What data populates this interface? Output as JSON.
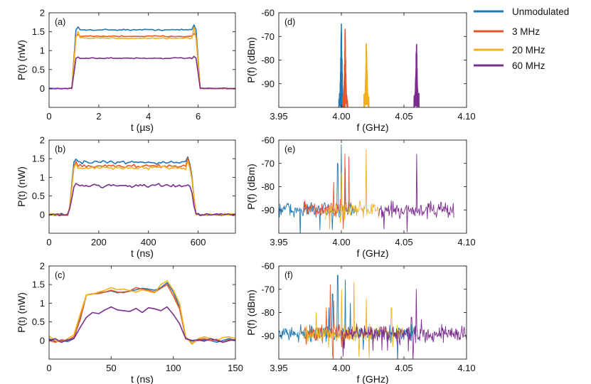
{
  "figure": {
    "panels": [
      "(a)",
      "(b)",
      "(c)",
      "(d)",
      "(e)",
      "(f)"
    ]
  },
  "legend": {
    "entries": [
      {
        "name": "Unmodulated",
        "color": "#1f77b4"
      },
      {
        "name": "3 MHz",
        "color": "#e4572e"
      },
      {
        "name": "20 MHz",
        "color": "#f2b01e"
      },
      {
        "name": "60 MHz",
        "color": "#7b2d8e"
      }
    ]
  },
  "chart_data": [
    {
      "id": "a",
      "type": "line",
      "panel_label": "(a)",
      "xlabel": "t (µs)",
      "ylabel": "P(t) (nW)",
      "xlim": [
        0,
        7.5
      ],
      "ylim": [
        -0.5,
        2
      ],
      "xticks": [
        0,
        2,
        4,
        6
      ],
      "yticks": [
        0,
        0.5,
        1,
        1.5,
        2
      ],
      "xtick_labels": [
        "0",
        "2",
        "4",
        "6"
      ],
      "ytick_labels": [
        "0",
        "0.5",
        "1",
        "1.5",
        "2"
      ],
      "pulse": {
        "start": 0.95,
        "end": 5.95,
        "ramp": 0.1,
        "noise": 0.025
      },
      "series": [
        {
          "name": "Unmodulated",
          "level": 1.55,
          "peak": 1.68
        },
        {
          "name": "3 MHz",
          "level": 1.38,
          "peak": 1.45
        },
        {
          "name": "20 MHz",
          "level": 1.33,
          "peak": 1.62
        },
        {
          "name": "60 MHz",
          "level": 0.8,
          "peak": 0.85
        }
      ]
    },
    {
      "id": "b",
      "type": "line",
      "panel_label": "(b)",
      "xlabel": "t (ns)",
      "ylabel": "P(t) (nW)",
      "xlim": [
        0,
        750
      ],
      "ylim": [
        -0.5,
        2
      ],
      "xticks": [
        0,
        200,
        400,
        600
      ],
      "yticks": [
        0,
        0.5,
        1,
        1.5,
        2
      ],
      "xtick_labels": [
        "0",
        "200",
        "400",
        "600"
      ],
      "ytick_labels": [
        "0",
        "0.5",
        "1",
        "1.5",
        "2"
      ],
      "pulse": {
        "start": 80,
        "end": 570,
        "ramp": 20,
        "noise": 0.07
      },
      "series": [
        {
          "name": "Unmodulated",
          "level": 1.4,
          "peak": 1.55
        },
        {
          "name": "3 MHz",
          "level": 1.3,
          "peak": 1.52
        },
        {
          "name": "20 MHz",
          "level": 1.25,
          "peak": 1.45
        },
        {
          "name": "60 MHz",
          "level": 0.78,
          "peak": 0.8
        }
      ]
    },
    {
      "id": "c",
      "type": "line",
      "panel_label": "(c)",
      "xlabel": "t (ns)",
      "ylabel": "P(t) (nW)",
      "xlim": [
        0,
        150
      ],
      "ylim": [
        -0.5,
        2
      ],
      "xticks": [
        0,
        50,
        100,
        150
      ],
      "yticks": [
        0,
        0.5,
        1,
        1.5,
        2
      ],
      "xtick_labels": [
        "0",
        "50",
        "100",
        "150"
      ],
      "ytick_labels": [
        "0",
        "0.5",
        "1",
        "1.5",
        "2"
      ],
      "series": [
        {
          "name": "Unmodulated",
          "x": [
            0,
            5,
            10,
            15,
            20,
            25,
            30,
            35,
            40,
            45,
            50,
            55,
            60,
            65,
            70,
            75,
            80,
            85,
            90,
            95,
            100,
            105,
            110,
            115,
            120,
            125,
            130,
            135,
            140,
            145,
            150
          ],
          "y": [
            0.05,
            -0.02,
            0.0,
            -0.03,
            0.05,
            0.6,
            1.22,
            1.25,
            1.28,
            1.3,
            1.33,
            1.28,
            1.3,
            1.32,
            1.36,
            1.4,
            1.38,
            1.35,
            1.42,
            1.55,
            1.3,
            0.9,
            0.05,
            -0.02,
            0.0,
            0.02,
            0.0,
            -0.05,
            0.0,
            0.05,
            0.0
          ]
        },
        {
          "name": "3 MHz",
          "x": [
            0,
            5,
            10,
            15,
            20,
            25,
            30,
            35,
            40,
            45,
            50,
            55,
            60,
            65,
            70,
            75,
            80,
            85,
            90,
            95,
            100,
            105,
            110,
            115,
            120,
            125,
            130,
            135,
            140,
            145,
            150
          ],
          "y": [
            0.0,
            -0.05,
            0.02,
            0.0,
            0.1,
            0.55,
            1.22,
            1.25,
            1.26,
            1.3,
            1.35,
            1.3,
            1.28,
            1.33,
            1.42,
            1.38,
            1.35,
            1.3,
            1.4,
            1.5,
            1.2,
            0.85,
            0.1,
            -0.08,
            0.02,
            0.05,
            0.0,
            0.03,
            -0.05,
            0.02,
            0.0
          ]
        },
        {
          "name": "20 MHz",
          "x": [
            0,
            5,
            10,
            15,
            20,
            25,
            30,
            35,
            40,
            45,
            50,
            55,
            60,
            65,
            70,
            75,
            80,
            85,
            90,
            95,
            100,
            105,
            110,
            115,
            120,
            125,
            130,
            135,
            140,
            145,
            150
          ],
          "y": [
            0.12,
            0.0,
            -0.05,
            0.05,
            0.15,
            0.7,
            1.22,
            1.24,
            1.3,
            1.35,
            1.42,
            1.36,
            1.38,
            1.34,
            1.3,
            1.36,
            1.32,
            1.28,
            1.5,
            1.6,
            1.35,
            1.0,
            0.1,
            -0.1,
            0.05,
            0.1,
            0.05,
            0.0,
            0.08,
            0.1,
            0.05
          ]
        },
        {
          "name": "60 MHz",
          "x": [
            0,
            5,
            10,
            15,
            20,
            25,
            30,
            35,
            40,
            45,
            50,
            55,
            60,
            65,
            70,
            75,
            80,
            85,
            90,
            95,
            100,
            105,
            110,
            115,
            120,
            125,
            130,
            135,
            140,
            145,
            150
          ],
          "y": [
            0.0,
            0.05,
            -0.05,
            0.02,
            0.05,
            0.35,
            0.62,
            0.75,
            0.72,
            0.82,
            0.9,
            0.82,
            0.8,
            0.78,
            0.86,
            0.75,
            0.88,
            0.85,
            0.8,
            0.9,
            0.7,
            0.45,
            0.05,
            0.0,
            0.02,
            -0.02,
            0.05,
            0.0,
            -0.05,
            0.0,
            0.02
          ]
        }
      ]
    },
    {
      "id": "d",
      "type": "line",
      "panel_label": "(d)",
      "xlabel": "f (GHz)",
      "ylabel": "P(f) (dBm)",
      "xlim": [
        3.95,
        4.1
      ],
      "ylim": [
        -100,
        -60
      ],
      "xticks": [
        3.95,
        4.0,
        4.05,
        4.1
      ],
      "yticks": [
        -90,
        -80,
        -70,
        -60
      ],
      "xtick_labels": [
        "3.95",
        "4.00",
        "4.05",
        "4.10"
      ],
      "ytick_labels": [
        "-90",
        "-80",
        "-70",
        "-60"
      ],
      "series": [
        {
          "name": "Unmodulated",
          "center": 4.0,
          "peak": -60,
          "base": -100,
          "width": 0.004
        },
        {
          "name": "3 MHz",
          "center": 4.003,
          "peak": -65,
          "base": -100,
          "width": 0.004
        },
        {
          "name": "20 MHz",
          "center": 4.02,
          "peak": -65,
          "base": -100,
          "width": 0.004
        },
        {
          "name": "60 MHz",
          "center": 4.06,
          "peak": -67,
          "base": -100,
          "width": 0.004
        }
      ]
    },
    {
      "id": "e",
      "type": "line",
      "panel_label": "(e)",
      "xlabel": "f (GHz)",
      "ylabel": "P(f) (dBm)",
      "xlim": [
        3.95,
        4.1
      ],
      "ylim": [
        -100,
        -60
      ],
      "xticks": [
        3.95,
        4.0,
        4.05,
        4.1
      ],
      "yticks": [
        -90,
        -80,
        -70,
        -60
      ],
      "xtick_labels": [
        "3.95",
        "4.00",
        "4.05",
        "4.10"
      ],
      "ytick_labels": [
        "-90",
        "-80",
        "-70",
        "-60"
      ],
      "noise_floor": -90,
      "noise_spread": 5,
      "series": [
        {
          "name": "Unmodulated",
          "range": [
            3.95,
            4.012
          ],
          "peaks": [
            [
              4.0,
              -62
            ],
            [
              3.997,
              -70
            ],
            [
              4.003,
              -72
            ]
          ]
        },
        {
          "name": "3 MHz",
          "range": [
            3.97,
            4.007
          ],
          "peaks": [
            [
              4.003,
              -66
            ],
            [
              4.006,
              -67
            ],
            [
              3.994,
              -78
            ]
          ]
        },
        {
          "name": "20 MHz",
          "range": [
            3.987,
            4.03
          ],
          "peaks": [
            [
              4.02,
              -64
            ],
            [
              4.0,
              -74
            ],
            [
              3.98,
              -82
            ],
            [
              4.04,
              -84
            ]
          ]
        },
        {
          "name": "60 MHz",
          "range": [
            4.03,
            4.09
          ],
          "peaks": [
            [
              4.06,
              -66
            ],
            [
              4.04,
              -86
            ],
            [
              4.08,
              -87
            ]
          ]
        }
      ]
    },
    {
      "id": "f",
      "type": "line",
      "panel_label": "(f)",
      "xlabel": "f (GHz)",
      "ylabel": "P(f) (dBm)",
      "xlim": [
        3.95,
        4.1
      ],
      "ylim": [
        -100,
        -60
      ],
      "xticks": [
        3.95,
        4.0,
        4.05,
        4.1
      ],
      "yticks": [
        -90,
        -80,
        -70,
        -60
      ],
      "xtick_labels": [
        "3.95",
        "4.00",
        "4.05",
        "4.10"
      ],
      "ytick_labels": [
        "-90",
        "-80",
        "-70",
        "-60"
      ],
      "noise_floor": -89,
      "noise_spread": 5,
      "series": [
        {
          "name": "Unmodulated",
          "range": [
            3.95,
            4.06
          ],
          "peaks": [
            [
              3.997,
              -64
            ],
            [
              4.003,
              -66
            ],
            [
              3.993,
              -72
            ],
            [
              4.007,
              -76
            ],
            [
              3.99,
              -78
            ]
          ]
        },
        {
          "name": "3 MHz",
          "range": [
            3.97,
            4.01
          ],
          "peaks": [
            [
              3.991,
              -68
            ],
            [
              3.994,
              -75
            ],
            [
              3.988,
              -78
            ]
          ]
        },
        {
          "name": "20 MHz",
          "range": [
            3.97,
            4.05
          ],
          "peaks": [
            [
              4.01,
              -67
            ],
            [
              4.0,
              -70
            ],
            [
              4.02,
              -74
            ],
            [
              4.04,
              -78
            ],
            [
              3.98,
              -80
            ]
          ]
        },
        {
          "name": "60 MHz",
          "range": [
            4.0,
            4.1
          ],
          "peaks": [
            [
              4.06,
              -70
            ],
            [
              4.056,
              -82
            ],
            [
              4.064,
              -83
            ],
            [
              4.08,
              -85
            ]
          ]
        }
      ]
    }
  ]
}
